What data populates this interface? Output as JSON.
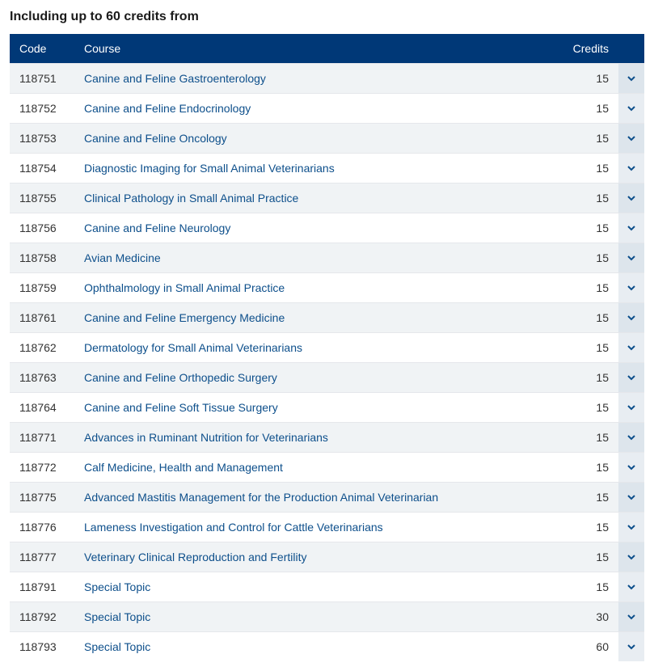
{
  "section_title": "Including up to 60 credits from",
  "headers": {
    "code": "Code",
    "course": "Course",
    "credits": "Credits"
  },
  "link_color": "#0d4f8b",
  "header_bg": "#003877",
  "row_odd_bg": "#f0f3f5",
  "row_even_bg": "#ffffff",
  "courses": [
    {
      "code": "118751",
      "name": "Canine and Feline Gastroenterology",
      "credits": "15"
    },
    {
      "code": "118752",
      "name": "Canine and Feline Endocrinology",
      "credits": "15"
    },
    {
      "code": "118753",
      "name": "Canine and Feline Oncology",
      "credits": "15"
    },
    {
      "code": "118754",
      "name": "Diagnostic Imaging for Small Animal Veterinarians",
      "credits": "15"
    },
    {
      "code": "118755",
      "name": "Clinical Pathology in Small Animal Practice",
      "credits": "15"
    },
    {
      "code": "118756",
      "name": "Canine and Feline Neurology",
      "credits": "15"
    },
    {
      "code": "118758",
      "name": "Avian Medicine",
      "credits": "15"
    },
    {
      "code": "118759",
      "name": "Ophthalmology in Small Animal Practice",
      "credits": "15"
    },
    {
      "code": "118761",
      "name": "Canine and Feline Emergency Medicine",
      "credits": "15"
    },
    {
      "code": "118762",
      "name": "Dermatology for Small Animal Veterinarians",
      "credits": "15"
    },
    {
      "code": "118763",
      "name": "Canine and Feline Orthopedic Surgery",
      "credits": "15"
    },
    {
      "code": "118764",
      "name": "Canine and Feline Soft Tissue Surgery",
      "credits": "15"
    },
    {
      "code": "118771",
      "name": "Advances in Ruminant Nutrition for Veterinarians",
      "credits": "15"
    },
    {
      "code": "118772",
      "name": "Calf Medicine, Health and Management",
      "credits": "15"
    },
    {
      "code": "118775",
      "name": "Advanced Mastitis Management for the Production Animal Veterinarian",
      "credits": "15"
    },
    {
      "code": "118776",
      "name": "Lameness Investigation and Control for Cattle Veterinarians",
      "credits": "15"
    },
    {
      "code": "118777",
      "name": "Veterinary Clinical Reproduction and Fertility",
      "credits": "15"
    },
    {
      "code": "118791",
      "name": "Special Topic",
      "credits": "15"
    },
    {
      "code": "118792",
      "name": "Special Topic",
      "credits": "30"
    },
    {
      "code": "118793",
      "name": "Special Topic",
      "credits": "60"
    }
  ]
}
